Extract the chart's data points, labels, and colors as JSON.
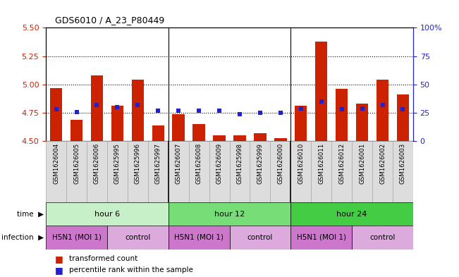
{
  "title": "GDS6010 / A_23_P80449",
  "samples": [
    "GSM1626004",
    "GSM1626005",
    "GSM1626006",
    "GSM1625995",
    "GSM1625996",
    "GSM1625997",
    "GSM1626007",
    "GSM1626008",
    "GSM1626009",
    "GSM1625998",
    "GSM1625999",
    "GSM1626000",
    "GSM1626010",
    "GSM1626011",
    "GSM1626012",
    "GSM1626001",
    "GSM1626002",
    "GSM1626003"
  ],
  "red_values": [
    4.97,
    4.69,
    5.08,
    4.81,
    5.04,
    4.64,
    4.74,
    4.65,
    4.55,
    4.55,
    4.57,
    4.53,
    4.81,
    5.38,
    4.96,
    4.83,
    5.04,
    4.91
  ],
  "blue_values": [
    28,
    26,
    32,
    30,
    32,
    27,
    27,
    27,
    27,
    24,
    25,
    25,
    29,
    35,
    28,
    29,
    32,
    28
  ],
  "y_min": 4.5,
  "y_max": 5.5,
  "y_ticks": [
    4.5,
    4.75,
    5.0,
    5.25,
    5.5
  ],
  "y_right_ticks": [
    0,
    25,
    50,
    75,
    100
  ],
  "y_right_labels": [
    "0",
    "25",
    "50",
    "75",
    "100%"
  ],
  "dotted_lines": [
    4.75,
    5.0,
    5.25
  ],
  "time_groups": [
    {
      "label": "hour 6",
      "start": 0,
      "end": 6,
      "color": "#c8f0c8"
    },
    {
      "label": "hour 12",
      "start": 6,
      "end": 12,
      "color": "#77dd77"
    },
    {
      "label": "hour 24",
      "start": 12,
      "end": 18,
      "color": "#44cc44"
    }
  ],
  "infection_groups": [
    {
      "label": "H5N1 (MOI 1)",
      "start": 0,
      "end": 3,
      "color": "#cc77cc"
    },
    {
      "label": "control",
      "start": 3,
      "end": 6,
      "color": "#ddaadd"
    },
    {
      "label": "H5N1 (MOI 1)",
      "start": 6,
      "end": 9,
      "color": "#cc77cc"
    },
    {
      "label": "control",
      "start": 9,
      "end": 12,
      "color": "#ddaadd"
    },
    {
      "label": "H5N1 (MOI 1)",
      "start": 12,
      "end": 15,
      "color": "#cc77cc"
    },
    {
      "label": "control",
      "start": 15,
      "end": 18,
      "color": "#ddaadd"
    }
  ],
  "bar_color": "#cc2200",
  "blue_color": "#2222cc",
  "label_color_left": "#cc2200",
  "label_color_right": "#2222cc",
  "sample_box_color": "#dddddd",
  "sample_box_edge": "#aaaaaa"
}
